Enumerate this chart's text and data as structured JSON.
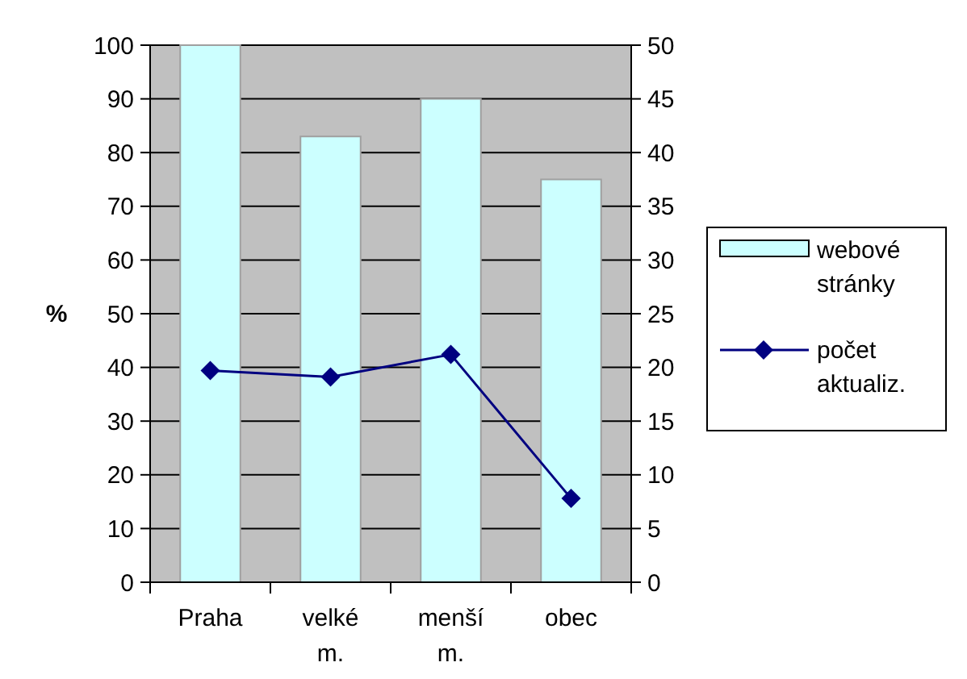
{
  "chart_data": {
    "type": "bar",
    "ylabel": "%",
    "categories": [
      "Praha",
      "velké m.",
      "menší m.",
      "obec"
    ],
    "series": [
      {
        "name": "webové stránky",
        "color": "#ccffff",
        "values": [
          100,
          83,
          90,
          75
        ]
      },
      {
        "name": "počet aktualiz.",
        "type": "line",
        "axis": "y2",
        "color": "#000080",
        "marker": "diamond",
        "values": [
          19.7,
          19.1,
          21.2,
          7.8
        ]
      }
    ],
    "ylim": [
      0,
      100
    ],
    "yticks": [
      0,
      10,
      20,
      30,
      40,
      50,
      60,
      70,
      80,
      90,
      100
    ],
    "y2lim": [
      0,
      50
    ],
    "y2ticks": [
      0,
      5,
      10,
      15,
      20,
      25,
      30,
      35,
      40,
      45,
      50
    ],
    "grid": "y",
    "legend": "right"
  }
}
